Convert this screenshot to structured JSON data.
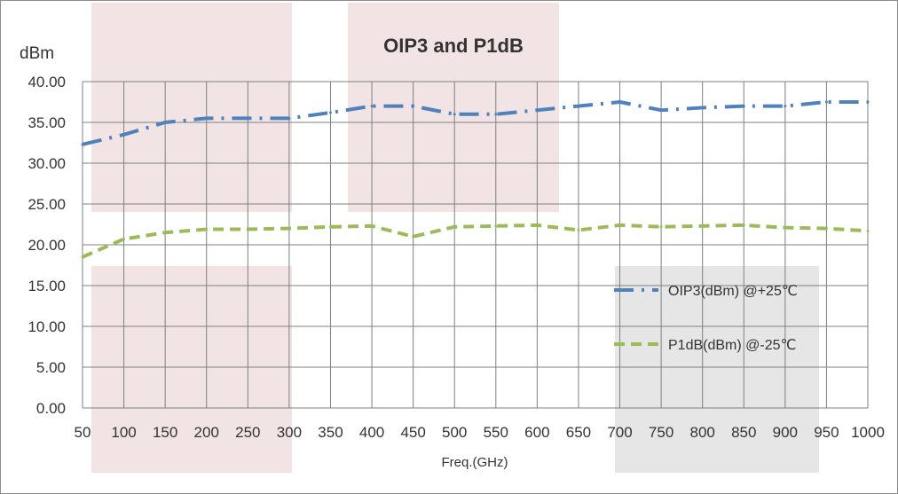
{
  "chart_data": {
    "type": "line",
    "title": "OIP3 and P1dB",
    "ylabel": "dBm",
    "xlabel": "Freq.(GHz)",
    "x": [
      50,
      100,
      150,
      200,
      250,
      300,
      350,
      400,
      450,
      500,
      550,
      600,
      650,
      700,
      750,
      800,
      850,
      900,
      950,
      1000
    ],
    "x_tick_labels": [
      "50",
      "100",
      "150",
      "200",
      "250",
      "300",
      "350",
      "400",
      "450",
      "500",
      "550",
      "600",
      "650",
      "700",
      "750",
      "800",
      "850",
      "900",
      "950",
      "1000"
    ],
    "ylim": [
      0,
      40
    ],
    "y_tick_labels": [
      "0.00",
      "5.00",
      "10.00",
      "15.00",
      "20.00",
      "25.00",
      "30.00",
      "35.00",
      "40.00"
    ],
    "grid": true,
    "legend_position": "right",
    "series": [
      {
        "name": "OIP3(dBm) @+25℃",
        "color": "#4f81bd",
        "style": "dash-dot",
        "values": [
          32.3,
          33.5,
          35.0,
          35.5,
          35.5,
          35.5,
          36.2,
          37.0,
          37.0,
          36.0,
          36.0,
          36.5,
          37.0,
          37.5,
          36.5,
          36.8,
          37.0,
          37.0,
          37.5,
          37.5
        ]
      },
      {
        "name": "P1dB(dBm) @-25℃",
        "color": "#9bbb59",
        "style": "dash",
        "values": [
          18.5,
          20.7,
          21.5,
          21.9,
          21.9,
          22.0,
          22.2,
          22.3,
          21.0,
          22.2,
          22.3,
          22.4,
          21.8,
          22.4,
          22.2,
          22.3,
          22.4,
          22.1,
          22.0,
          21.7
        ]
      }
    ]
  }
}
